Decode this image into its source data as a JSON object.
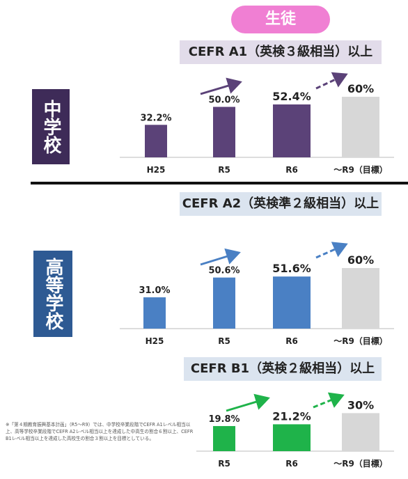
{
  "header": {
    "label": "生徒"
  },
  "sections": [
    {
      "school": "中学校",
      "band": "CEFR A1（英検３級相当）以上"
    },
    {
      "school": "高等学校",
      "band": "CEFR A2（英検準２級相当）以上"
    },
    {
      "school": "",
      "band": "CEFR B1（英検２級相当）以上"
    }
  ],
  "note": "※「第４期教育振興基本計画」（R5～R9）では、中学校卒業段階でCEFR A1レベル相当以上、高等学校卒業段階でCEFR A2レベル相当以上を達成した中高生の割合６割以上、CEFR B1レベル相当以上を達成した高校生の割合３割以上を目標としている。",
  "colors": {
    "jhs": "#5b4278",
    "hs": "#4a80c4",
    "b1": "#1fb34a",
    "target": "#d7d7d7"
  },
  "chart_data": [
    {
      "type": "bar",
      "title": "CEFR A1（英検３級相当）以上",
      "categories": [
        "H25",
        "R5",
        "R6",
        "～R9（目標）"
      ],
      "values": [
        32.2,
        50.0,
        52.4,
        60
      ],
      "labels": [
        "32.2%",
        "50.0%",
        "52.4%",
        "60%"
      ]
    },
    {
      "type": "bar",
      "title": "CEFR A2（英検準２級相当）以上",
      "categories": [
        "H25",
        "R5",
        "R6",
        "～R9（目標）"
      ],
      "values": [
        31.0,
        50.6,
        51.6,
        60
      ],
      "labels": [
        "31.0%",
        "50.6%",
        "51.6%",
        "60%"
      ]
    },
    {
      "type": "bar",
      "title": "CEFR B1（英検２級相当）以上",
      "categories": [
        "R5",
        "R6",
        "～R9（目標）"
      ],
      "values": [
        19.8,
        21.2,
        30
      ],
      "labels": [
        "19.8%",
        "21.2%",
        "30%"
      ]
    }
  ]
}
